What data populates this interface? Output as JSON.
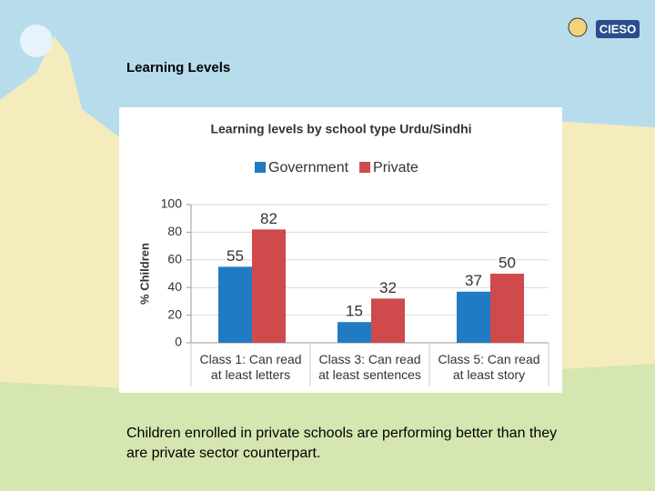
{
  "slide_title": "Learning Levels",
  "caption": "Children enrolled in private schools are performing better than they are private sector counterpart.",
  "logo_text": "CIESO",
  "chart_data": {
    "type": "bar",
    "title": "Learning levels by school type Urdu/Sindhi",
    "y_label": "% Children",
    "categories": [
      "Class 1: Can read\nat least letters",
      "Class 3: Can read\nat least sentences",
      "Class 5: Can read\nat least story"
    ],
    "series": [
      {
        "name": "Government",
        "color": "#1f7bc4",
        "values": [
          55,
          15,
          37
        ]
      },
      {
        "name": "Private",
        "color": "#cf4a4b",
        "values": [
          82,
          32,
          50
        ]
      }
    ],
    "ylim": [
      0,
      100
    ],
    "yticks": [
      0,
      20,
      40,
      60,
      80,
      100
    ],
    "grid": true,
    "legend": "top"
  }
}
